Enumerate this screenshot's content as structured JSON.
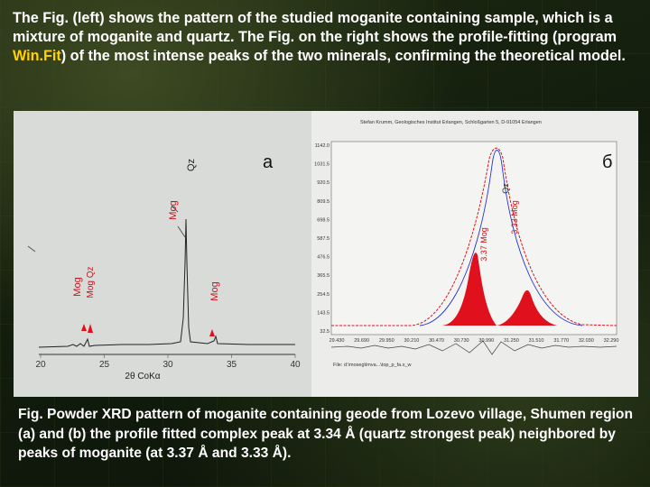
{
  "slide": {
    "intro_part1": "The Fig. (left) shows the pattern of the studied moganite containing sample, which is a mixture of moganite and quartz. The Fig. on the right shows the profile-fitting  (program ",
    "intro_program": "Win.Fit",
    "intro_part2": ") of the most intense peaks of the two minerals, confirming the theoretical model.",
    "caption": "Fig.  Powder XRD pattern of moganite containing geode from Lozevo village, Shumen region (a) and (b) the profile fitted complex peak at 3.34 Å (quartz strongest peak) neighbored by peaks of moganite (at 3.37 Å and 3.33 Å).",
    "colors": {
      "highlight": "#ffd200",
      "text": "#ffffff",
      "fit_red": "#e0101c"
    }
  },
  "left_figure": {
    "panel_label": "a",
    "x_ticks": [
      "20",
      "25",
      "30",
      "35",
      "40"
    ],
    "xlabel": "2θ CoKα",
    "peak_labels": {
      "qz_main": "Qz",
      "mog_a": "Mog",
      "mog_b": "Mog",
      "mog_c": "Mog",
      "mog_qz": "Mog Qz"
    }
  },
  "right_figure": {
    "panel_label": "б",
    "header": "Stefan Krumm, Geologisches Institut Erlangen, Schloßgarten 5, D-91054 Erlangen",
    "footer": "File: d:\\moseg\\lmva...\\top_p_fa.x_w",
    "y_ticks": [
      "1142.0",
      "1031.5",
      "920.5",
      "809.5",
      "698.5",
      "587.5",
      "476.5",
      "365.5",
      "254.5",
      "143.5",
      "32.5"
    ],
    "x_ticks": [
      "29.430",
      "29.690",
      "29.950",
      "30.210",
      "30.470",
      "30.730",
      "30.990",
      "31.250",
      "31.510",
      "31.770",
      "32.030",
      "32.290"
    ],
    "peak_labels": {
      "qz": "Qz",
      "mog_337": "3.37 Mog",
      "mog_333": "3.33 Mog"
    }
  }
}
